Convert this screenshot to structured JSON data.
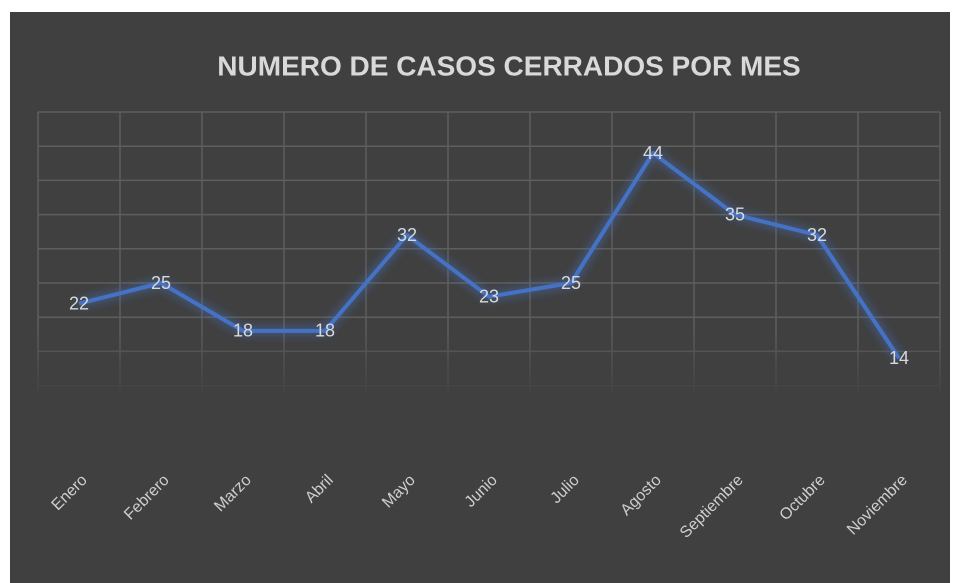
{
  "chart_data": {
    "type": "line",
    "title": "NUMERO DE CASOS CERRADOS POR MES",
    "categories": [
      "Enero",
      "Febrero",
      "Marzo",
      "Abril",
      "Mayo",
      "Junio",
      "Julio",
      "Agosto",
      "Septiembre",
      "Octubre",
      "Noviembre"
    ],
    "values": [
      22,
      25,
      18,
      18,
      32,
      23,
      25,
      44,
      35,
      32,
      14
    ],
    "color": "#4472c4",
    "ylim": [
      0,
      50
    ],
    "yticks": [
      0,
      5,
      10,
      15,
      20,
      25,
      30,
      35,
      40,
      45,
      50
    ],
    "grid": true
  }
}
